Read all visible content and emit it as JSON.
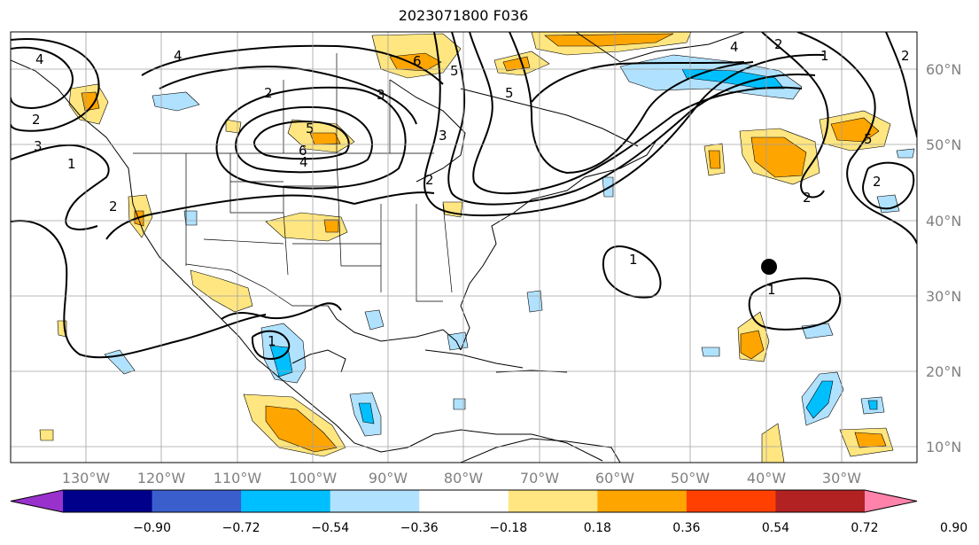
{
  "title": "2023071800 F036",
  "lon_labels": [
    "130°W",
    "120°W",
    "110°W",
    "100°W",
    "90°W",
    "80°W",
    "70°W",
    "60°W",
    "50°W",
    "40°W",
    "30°W"
  ],
  "lat_labels": [
    "60°N",
    "50°N",
    "40°N",
    "30°N",
    "20°N",
    "10°N"
  ],
  "contour_labels": [
    "4",
    "4",
    "3",
    "2",
    "2",
    "1",
    "2",
    "3",
    "5",
    "6",
    "4",
    "3",
    "2",
    "6",
    "5",
    "5",
    "4",
    "2",
    "1",
    "2",
    "5",
    "2",
    "1",
    "1",
    "2",
    "1"
  ],
  "colorbar": {
    "ticks": [
      "−0.90",
      "−0.72",
      "−0.54",
      "−0.36",
      "−0.18",
      "0.18",
      "0.36",
      "0.54",
      "0.72",
      "0.90"
    ],
    "colors": [
      "#9932cc",
      "#00008b",
      "#3a5fcd",
      "#00bfff",
      "#b0e2ff",
      "#ffffff",
      "#ffe680",
      "#ffa500",
      "#ff4000",
      "#b22222",
      "#ff82ab"
    ]
  },
  "fill_colors": {
    "yellow": "#ffe680",
    "orange": "#ffa500",
    "lightblue": "#b0e2ff",
    "blue": "#00bfff"
  },
  "storm_marker": "black-circle"
}
